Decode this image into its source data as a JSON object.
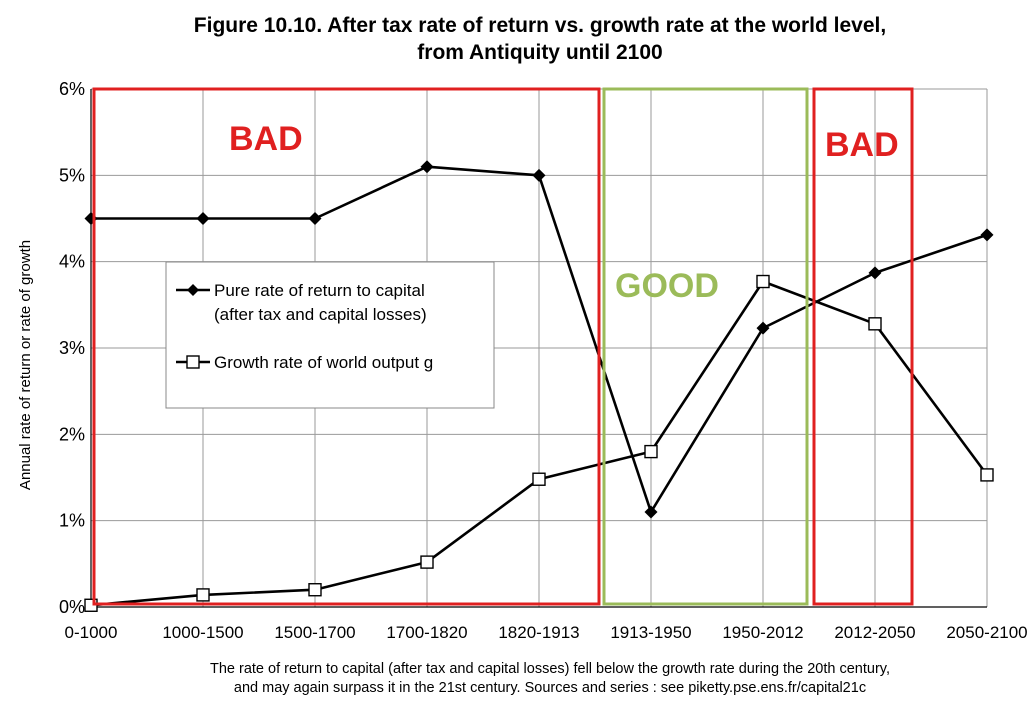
{
  "title": {
    "line1": "Figure 10.10. After tax rate of return vs. growth rate at the world level,",
    "line2": "from Antiquity until 2100"
  },
  "caption": {
    "line1": "The rate of return to capital (after tax and capital losses) fell below the growth rate during the 20th century,",
    "line2": "and may again surpass it in the 21st century. Sources and series : see piketty.pse.ens.fr/capital21c"
  },
  "chart_data": {
    "type": "line",
    "categories": [
      "0-1000",
      "1000-1500",
      "1500-1700",
      "1700-1820",
      "1820-1913",
      "1913-1950",
      "1950-2012",
      "2012-2050",
      "2050-2100"
    ],
    "series": [
      {
        "name": "Pure rate of return to capital (after tax and capital losses)",
        "legend_lines": [
          "Pure rate of return to capital",
          "(after tax and capital losses)"
        ],
        "marker": "filled-diamond",
        "values": [
          4.5,
          4.5,
          4.5,
          5.1,
          5.0,
          1.1,
          3.23,
          3.87,
          4.31
        ]
      },
      {
        "name": "Growth rate of world output g",
        "legend_lines": [
          "Growth rate of world output g"
        ],
        "marker": "open-square",
        "values": [
          0.02,
          0.14,
          0.2,
          0.52,
          1.48,
          1.8,
          3.77,
          3.28,
          1.53
        ]
      }
    ],
    "ylabel": "Annual rate of return or rate of growth",
    "xlabel": "",
    "ylim": [
      0,
      6
    ],
    "yticks": [
      0,
      1,
      2,
      3,
      4,
      5,
      6
    ],
    "ytick_format": "percent",
    "grid": "horizontal-and-vertical",
    "legend_placement": "left-middle",
    "annotations": [
      {
        "label": "BAD",
        "color": "#e02020",
        "from_category": "0-1000",
        "to_category": "1913-1950"
      },
      {
        "label": "GOOD",
        "color": "#9bbb59",
        "from_category": "1913-1950",
        "to_category": "2012-2050"
      },
      {
        "label": "BAD",
        "color": "#e02020",
        "from_category": "2012-2050",
        "to_category": "2050-2100"
      }
    ]
  }
}
